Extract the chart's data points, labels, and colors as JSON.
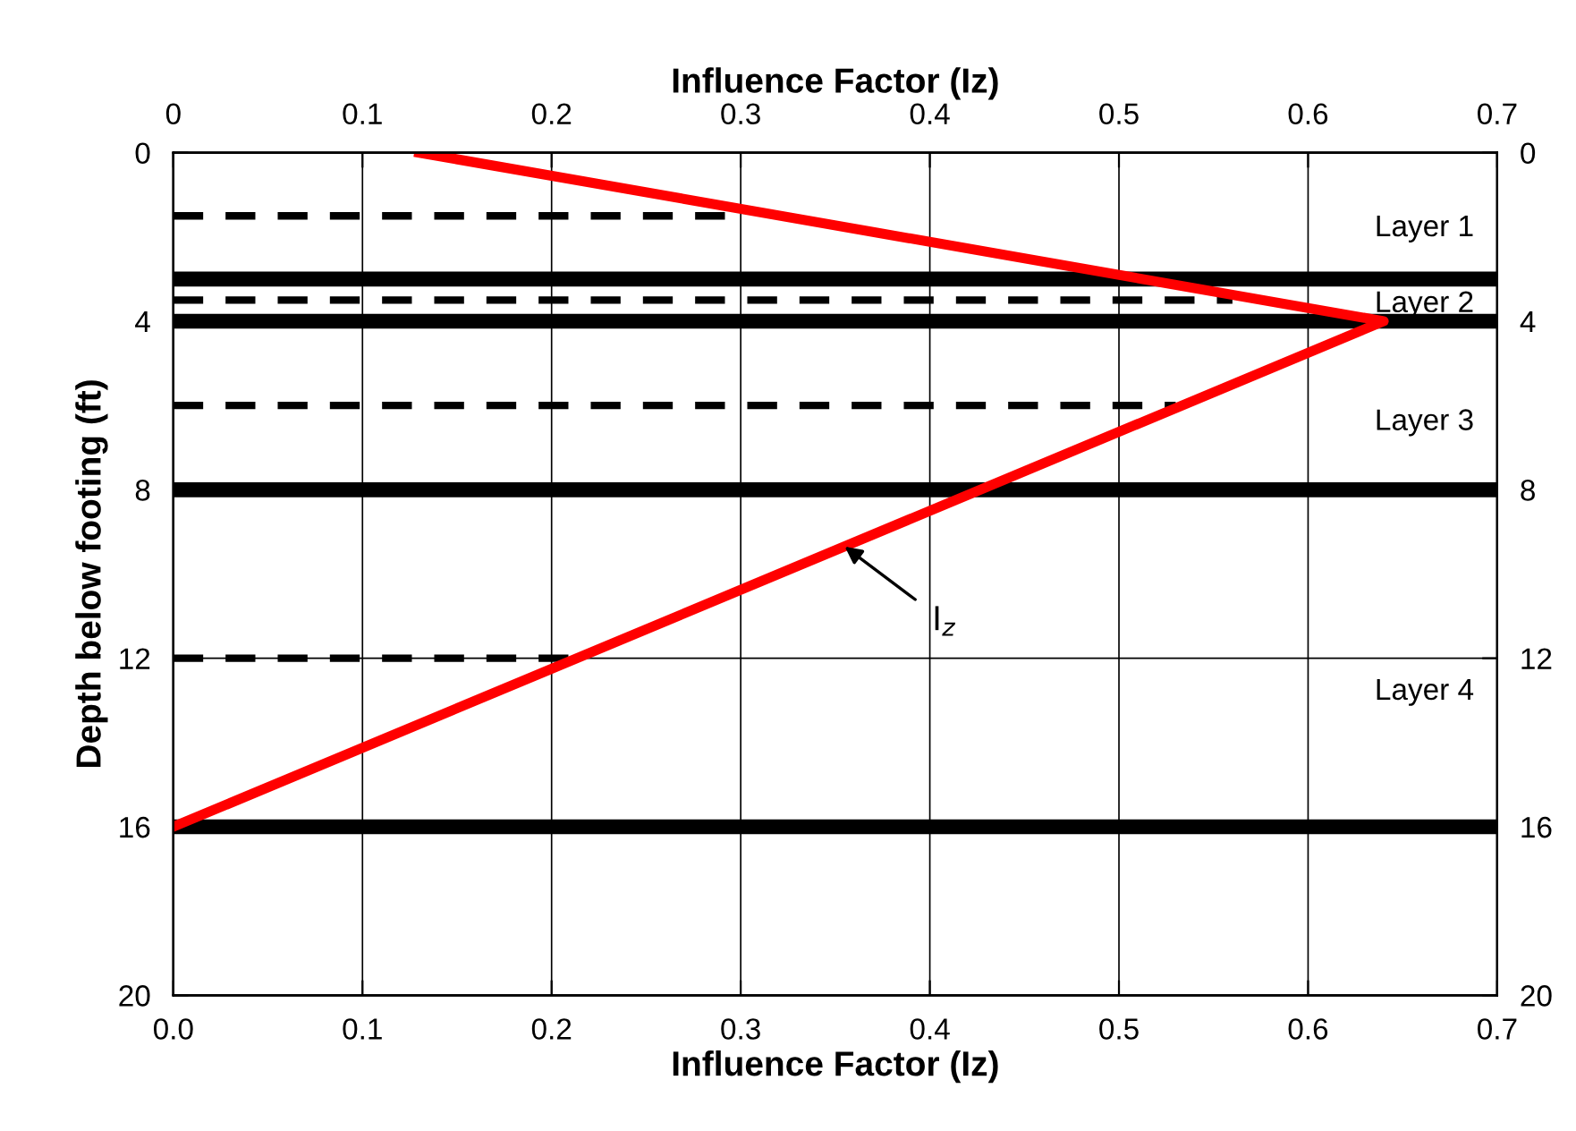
{
  "chart_data": {
    "type": "line",
    "xlabel": "Influence Factor (Iz)",
    "x2label": "Influence Factor (Iz)",
    "ylabel": "Depth below footing (ft)",
    "xlim": [
      0,
      0.7
    ],
    "xticks": [
      {
        "value": 0,
        "label": "0.0"
      },
      0.1,
      0.2,
      0.3,
      0.4,
      0.5,
      0.6,
      0.7
    ],
    "x2lim": [
      0,
      0.7
    ],
    "x2ticks": [
      0,
      0.1,
      0.2,
      0.3,
      0.4,
      0.5,
      0.6,
      0.7
    ],
    "ylim": [
      20,
      0
    ],
    "yticks": [
      0,
      4,
      8,
      12,
      16,
      20
    ],
    "y2lim": [
      20,
      0
    ],
    "y2ticks": [
      0,
      4,
      8,
      12,
      16,
      20
    ],
    "grid": true,
    "marker": "none",
    "series": [
      {
        "color": "#ff0000",
        "x": [
          0.13,
          0.64,
          0
        ],
        "values": [
          0,
          4,
          16
        ],
        "line_style": "solid"
      },
      {
        "color": "#000000",
        "x": [
          0,
          0.3
        ],
        "values": [
          1.5,
          1.5
        ],
        "line_style": "dashed"
      },
      {
        "color": "#000000",
        "x": [
          0,
          0.56
        ],
        "values": [
          3.5,
          3.5
        ],
        "line_style": "dashed"
      },
      {
        "color": "#000000",
        "x": [
          0,
          0.53
        ],
        "values": [
          6,
          6
        ],
        "line_style": "dashed"
      },
      {
        "color": "#000000",
        "x": [
          0,
          0.22
        ],
        "values": [
          12,
          12
        ],
        "line_style": "dashed"
      }
    ],
    "ref_lines": [
      {
        "axis": "y",
        "value": 3,
        "color": "#000000"
      },
      {
        "axis": "y",
        "value": 4,
        "color": "#000000"
      },
      {
        "axis": "y",
        "value": 8,
        "color": "#000000"
      },
      {
        "axis": "y",
        "value": 16,
        "color": "#000000"
      }
    ],
    "annotations": [
      "Layer 1",
      "Layer 2",
      "Layer 3",
      "Layer 4",
      {
        "text": "I$_{z}$",
        "x": 0.355,
        "y": 9.35
      }
    ]
  }
}
